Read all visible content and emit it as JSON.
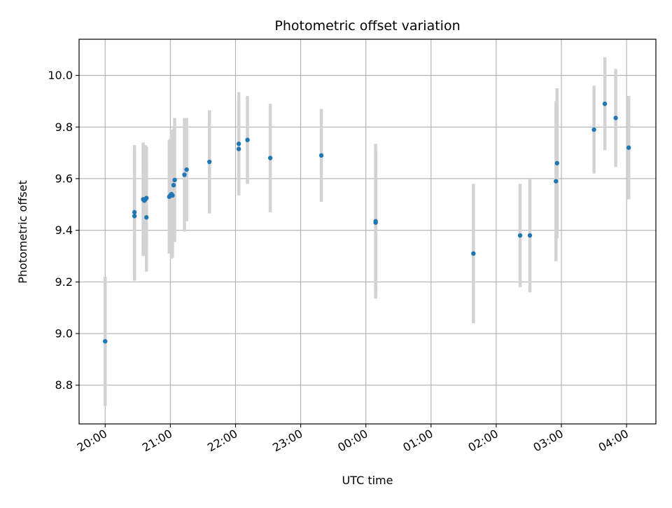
{
  "chart_data": {
    "type": "scatter",
    "title": "Photometric offset variation",
    "xlabel": "UTC time",
    "ylabel": "Photometric offset",
    "x_unit": "UTC time of night (20:00 to 04:00)",
    "xlim": [
      "19:36",
      "04:27"
    ],
    "ylim": [
      8.65,
      10.14
    ],
    "x_ticks": [
      "20:00",
      "21:00",
      "22:00",
      "23:00",
      "00:00",
      "01:00",
      "02:00",
      "03:00",
      "04:00"
    ],
    "y_ticks": [
      8.8,
      9.0,
      9.2,
      9.4,
      9.6,
      9.8,
      10.0
    ],
    "grid": true,
    "legend": "none",
    "colors": {
      "point": "#1f77b4",
      "error_bar": "#d3d3d3",
      "grid": "#b0b0b0"
    },
    "series": [
      {
        "x": [
          "20:00",
          "20:27",
          "20:27",
          "20:35",
          "20:36",
          "20:37",
          "20:38",
          "20:38",
          "20:59",
          "21:00",
          "21:01",
          "21:02",
          "21:03",
          "21:04",
          "21:13",
          "21:15",
          "21:36",
          "22:03",
          "22:03",
          "22:11",
          "22:32",
          "23:19",
          "00:09",
          "00:09",
          "01:39",
          "02:22",
          "02:31",
          "02:55",
          "02:56",
          "03:30",
          "03:40",
          "03:50",
          "04:02"
        ],
        "y": [
          8.97,
          9.47,
          9.455,
          9.52,
          9.515,
          9.52,
          9.45,
          9.525,
          9.53,
          9.535,
          9.54,
          9.535,
          9.575,
          9.595,
          9.615,
          9.635,
          9.665,
          9.735,
          9.715,
          9.75,
          9.68,
          9.69,
          9.435,
          9.43,
          9.31,
          9.38,
          9.38,
          9.59,
          9.66,
          9.79,
          9.89,
          9.835,
          9.72
        ],
        "y_err": [
          0.25,
          0.26,
          0.25,
          0.22,
          0.21,
          0.21,
          0.21,
          0.2,
          0.22,
          0.22,
          0.25,
          0.24,
          0.22,
          0.24,
          0.22,
          0.2,
          0.2,
          0.2,
          0.18,
          0.17,
          0.21,
          0.18,
          0.3,
          0.28,
          0.27,
          0.2,
          0.22,
          0.31,
          0.29,
          0.17,
          0.18,
          0.19,
          0.2
        ]
      }
    ]
  }
}
